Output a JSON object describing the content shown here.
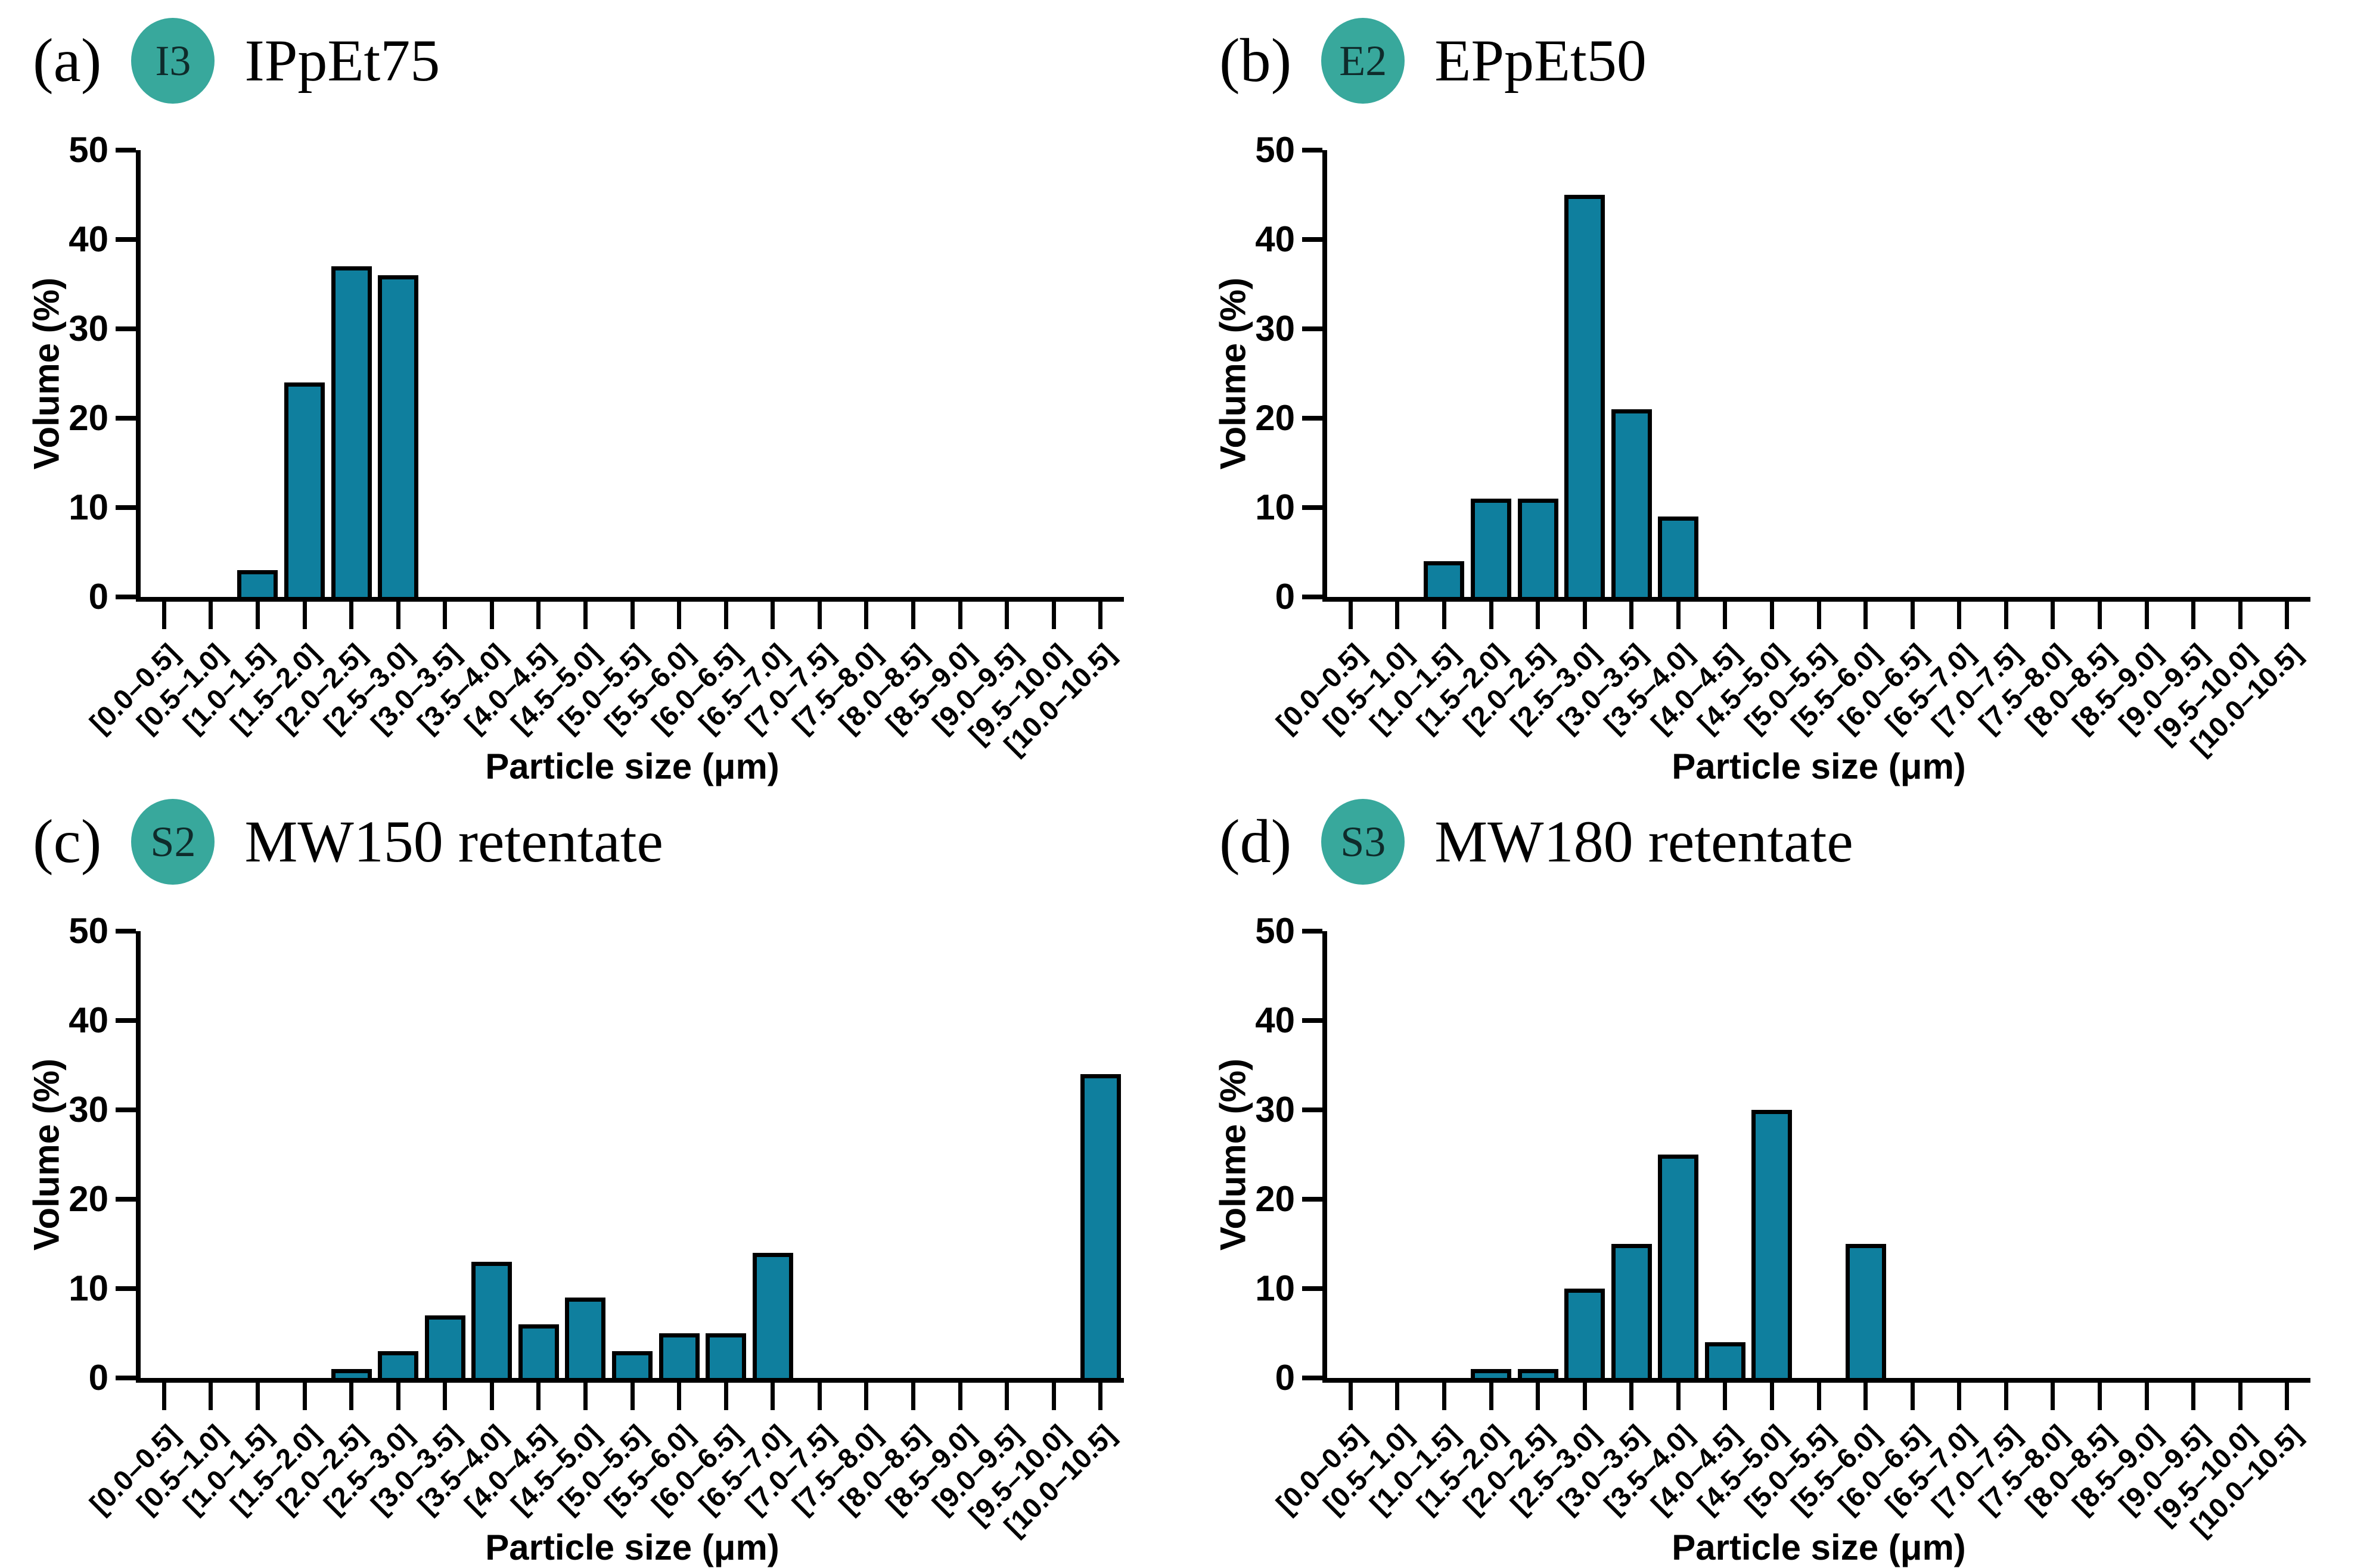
{
  "figure_name": "particle-size-distribution-panels",
  "colors": {
    "bar_fill": "#0F7F9E",
    "bar_border": "#000000",
    "badge_fill": "#38A89C",
    "badge_text": "#0F2B2B",
    "axis": "#000000",
    "background": "#FFFFFF"
  },
  "chart_data": [
    {
      "type": "bar",
      "panel_letter": "(a)",
      "badge": "I3",
      "title": "IPpEt75",
      "xlabel": "Particle size (μm)",
      "ylabel": "Volume (%)",
      "ylim": [
        0,
        50
      ],
      "yticks": [
        0,
        10,
        20,
        30,
        40,
        50
      ],
      "grid": false,
      "categories": [
        "[0.0–0.5]",
        "[0.5–1.0]",
        "[1.0–1.5]",
        "[1.5–2.0]",
        "[2.0–2.5]",
        "[2.5–3.0]",
        "[3.0–3.5]",
        "[3.5–4.0]",
        "[4.0–4.5]",
        "[4.5–5.0]",
        "[5.0–5.5]",
        "[5.5–6.0]",
        "[6.0–6.5]",
        "[6.5–7.0]",
        "[7.0–7.5]",
        "[7.5–8.0]",
        "[8.0–8.5]",
        "[8.5–9.0]",
        "[9.0–9.5]",
        "[9.5–10.0]",
        "[10.0–10.5]"
      ],
      "values": [
        0,
        0,
        3,
        24,
        37,
        36,
        0,
        0,
        0,
        0,
        0,
        0,
        0,
        0,
        0,
        0,
        0,
        0,
        0,
        0,
        0
      ]
    },
    {
      "type": "bar",
      "panel_letter": "(b)",
      "badge": "E2",
      "title": "EPpEt50",
      "xlabel": "Particle size (μm)",
      "ylabel": "Volume (%)",
      "ylim": [
        0,
        50
      ],
      "yticks": [
        0,
        10,
        20,
        30,
        40,
        50
      ],
      "grid": false,
      "categories": [
        "[0.0–0.5]",
        "[0.5–1.0]",
        "[1.0–1.5]",
        "[1.5–2.0]",
        "[2.0–2.5]",
        "[2.5–3.0]",
        "[3.0–3.5]",
        "[3.5–4.0]",
        "[4.0–4.5]",
        "[4.5–5.0]",
        "[5.0–5.5]",
        "[5.5–6.0]",
        "[6.0–6.5]",
        "[6.5–7.0]",
        "[7.0–7.5]",
        "[7.5–8.0]",
        "[8.0–8.5]",
        "[8.5–9.0]",
        "[9.0–9.5]",
        "[9.5–10.0]",
        "[10.0–10.5]"
      ],
      "values": [
        0,
        0,
        4,
        11,
        11,
        45,
        21,
        9,
        0,
        0,
        0,
        0,
        0,
        0,
        0,
        0,
        0,
        0,
        0,
        0,
        0
      ]
    },
    {
      "type": "bar",
      "panel_letter": "(c)",
      "badge": "S2",
      "title": "MW150 retentate",
      "xlabel": "Particle size (μm)",
      "ylabel": "Volume (%)",
      "ylim": [
        0,
        50
      ],
      "yticks": [
        0,
        10,
        20,
        30,
        40,
        50
      ],
      "grid": false,
      "categories": [
        "[0.0–0.5]",
        "[0.5–1.0]",
        "[1.0–1.5]",
        "[1.5–2.0]",
        "[2.0–2.5]",
        "[2.5–3.0]",
        "[3.0–3.5]",
        "[3.5–4.0]",
        "[4.0–4.5]",
        "[4.5–5.0]",
        "[5.0–5.5]",
        "[5.5–6.0]",
        "[6.0–6.5]",
        "[6.5–7.0]",
        "[7.0–7.5]",
        "[7.5–8.0]",
        "[8.0–8.5]",
        "[8.5–9.0]",
        "[9.0–9.5]",
        "[9.5–10.0]",
        "[10.0–10.5]"
      ],
      "values": [
        0,
        0,
        0,
        0,
        1,
        3,
        7,
        13,
        6,
        9,
        3,
        5,
        5,
        14,
        0,
        0,
        0,
        0,
        0,
        0,
        34
      ]
    },
    {
      "type": "bar",
      "panel_letter": "(d)",
      "badge": "S3",
      "title": "MW180 retentate",
      "xlabel": "Particle size (μm)",
      "ylabel": "Volume (%)",
      "ylim": [
        0,
        50
      ],
      "yticks": [
        0,
        10,
        20,
        30,
        40,
        50
      ],
      "grid": false,
      "categories": [
        "[0.0–0.5]",
        "[0.5–1.0]",
        "[1.0–1.5]",
        "[1.5–2.0]",
        "[2.0–2.5]",
        "[2.5–3.0]",
        "[3.0–3.5]",
        "[3.5–4.0]",
        "[4.0–4.5]",
        "[4.5–5.0]",
        "[5.0–5.5]",
        "[5.5–6.0]",
        "[6.0–6.5]",
        "[6.5–7.0]",
        "[7.0–7.5]",
        "[7.5–8.0]",
        "[8.0–8.5]",
        "[8.5–9.0]",
        "[9.0–9.5]",
        "[9.5–10.0]",
        "[10.0–10.5]"
      ],
      "values": [
        0,
        0,
        0,
        1,
        1,
        10,
        15,
        25,
        4,
        30,
        0,
        15,
        0,
        0,
        0,
        0,
        0,
        0,
        0,
        0,
        0
      ]
    }
  ]
}
